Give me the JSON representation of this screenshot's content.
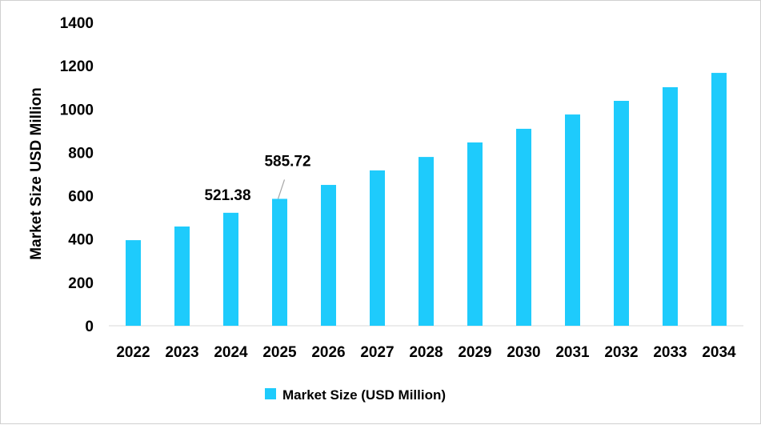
{
  "chart_data": {
    "type": "bar",
    "categories": [
      "2022",
      "2023",
      "2024",
      "2025",
      "2026",
      "2027",
      "2028",
      "2029",
      "2030",
      "2031",
      "2032",
      "2033",
      "2034"
    ],
    "series": [
      {
        "name": "Market Size (USD Million)",
        "values": [
          395,
          458,
          521.38,
          585.72,
          650,
          717,
          779,
          846,
          909,
          975,
          1038,
          1101,
          1167
        ],
        "color": "#1ecbfc"
      }
    ],
    "data_labels": [
      {
        "category": "2024",
        "text": "521.38"
      },
      {
        "category": "2025",
        "text": "585.72"
      }
    ],
    "title": "",
    "xlabel": "",
    "ylabel": "Market Size USD Million",
    "ylim": [
      0,
      1400
    ],
    "yticks": [
      0,
      200,
      400,
      600,
      800,
      1000,
      1200,
      1400
    ],
    "grid": false,
    "legend": "bottom"
  }
}
